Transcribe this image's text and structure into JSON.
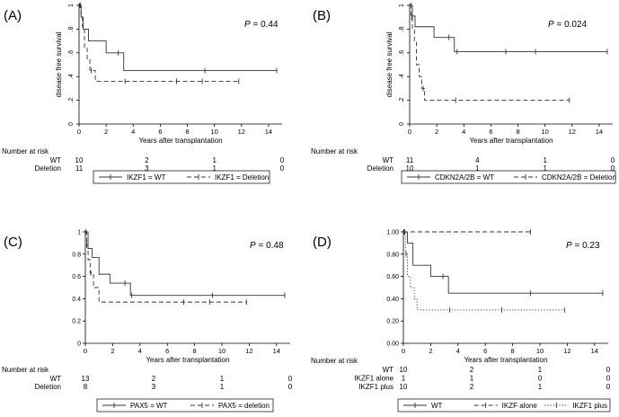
{
  "chart_data": [
    {
      "type": "line",
      "panel_label": "(A)",
      "ylabel": "disease free survival",
      "xlabel": "Years after transplantation",
      "p_value_label": "P",
      "p_value": "= 0.44",
      "xlim": [
        0,
        15
      ],
      "ylim": [
        0,
        1
      ],
      "xticks": [
        "0",
        "2",
        "4",
        "6",
        "8",
        "10",
        "12",
        "14"
      ],
      "yticks": [
        "0",
        ".2",
        ".4",
        ".6",
        ".8",
        "1"
      ],
      "series": [
        {
          "name": "IKZF1 = WT",
          "style": "solid",
          "x": [
            0,
            0.15,
            0.3,
            0.7,
            2.0,
            3.3,
            14.6
          ],
          "y": [
            1,
            0.9,
            0.8,
            0.7,
            0.6,
            0.45,
            0.45
          ],
          "censor_x": [
            0.05,
            2.9,
            9.3,
            14.6
          ]
        },
        {
          "name": "IKZF1 = Deletion",
          "style": "dashed",
          "x": [
            0,
            0.15,
            0.25,
            0.4,
            0.6,
            0.8,
            1.0,
            1.2,
            11.8
          ],
          "y": [
            1,
            0.91,
            0.82,
            0.64,
            0.55,
            0.45,
            0.45,
            0.36,
            0.36
          ],
          "censor_x": [
            0.1,
            0.9,
            3.4,
            7.2,
            9.1,
            11.8
          ]
        }
      ],
      "risk_title": "Number at risk",
      "risk_times": [
        0,
        5,
        10,
        15
      ],
      "risk_rows": [
        {
          "label": "WT",
          "values": [
            "10",
            "2",
            "1",
            "0"
          ]
        },
        {
          "label": "Deletion",
          "values": [
            "11",
            "3",
            "1",
            "0"
          ]
        }
      ]
    },
    {
      "type": "line",
      "panel_label": "(B)",
      "ylabel": "disease free survival",
      "xlabel": "Years after transplantation",
      "p_value_label": "P",
      "p_value": "= 0.024",
      "xlim": [
        0,
        15
      ],
      "ylim": [
        0,
        1
      ],
      "xticks": [
        "0",
        "2",
        "4",
        "6",
        "8",
        "10",
        "12",
        "14"
      ],
      "yticks": [
        "0",
        ".2",
        ".4",
        ".6",
        ".8",
        "1"
      ],
      "series": [
        {
          "name": "CDKN2A/2B = WT",
          "style": "solid",
          "x": [
            0,
            0.2,
            0.4,
            1.8,
            3.0,
            3.3,
            14.6
          ],
          "y": [
            1,
            0.91,
            0.82,
            0.73,
            0.73,
            0.61,
            0.61
          ],
          "censor_x": [
            0.1,
            2.9,
            3.5,
            7.1,
            9.3,
            14.6
          ]
        },
        {
          "name": "CDKN2A/2B = Deletion",
          "style": "dashed",
          "x": [
            0,
            0.1,
            0.2,
            0.35,
            0.5,
            0.7,
            0.9,
            1.1,
            11.8
          ],
          "y": [
            1,
            0.9,
            0.8,
            0.7,
            0.5,
            0.4,
            0.3,
            0.2,
            0.2
          ],
          "censor_x": [
            0.15,
            1.0,
            3.4,
            11.8
          ]
        }
      ],
      "risk_title": "Number at risk",
      "risk_times": [
        0,
        5,
        10,
        15
      ],
      "risk_rows": [
        {
          "label": "WT",
          "values": [
            "11",
            "4",
            "1",
            "0"
          ]
        },
        {
          "label": "Deletion",
          "values": [
            "10",
            "1",
            "1",
            "0"
          ]
        }
      ]
    },
    {
      "type": "line",
      "panel_label": "(C)",
      "ylabel": "",
      "xlabel": "Years after transplantation",
      "p_value_label": "P",
      "p_value": "= 0.48",
      "xlim": [
        0,
        15
      ],
      "ylim": [
        0,
        1
      ],
      "xticks": [
        "0",
        "2",
        "4",
        "6",
        "8",
        "10",
        "12",
        "14"
      ],
      "yticks": [
        "0",
        "0.2",
        "0.4",
        "0.6",
        "0.8",
        "1"
      ],
      "series": [
        {
          "name": "PAX5 = WT",
          "style": "solid",
          "x": [
            0,
            0.2,
            0.5,
            1.0,
            1.8,
            3.0,
            3.3,
            14.6
          ],
          "y": [
            1,
            0.85,
            0.77,
            0.62,
            0.54,
            0.54,
            0.43,
            0.43
          ],
          "censor_x": [
            0.05,
            2.9,
            3.4,
            9.3,
            14.6
          ]
        },
        {
          "name": "PAX5 = deletion",
          "style": "dashed",
          "x": [
            0,
            0.1,
            0.2,
            0.35,
            0.6,
            1.0,
            11.8
          ],
          "y": [
            1,
            0.88,
            0.75,
            0.63,
            0.5,
            0.37,
            0.37
          ],
          "censor_x": [
            0.1,
            0.4,
            7.2,
            9.1,
            11.8
          ]
        }
      ],
      "risk_title": "Number at risk",
      "risk_times": [
        0,
        5,
        10,
        15
      ],
      "risk_rows": [
        {
          "label": "WT",
          "values": [
            "13",
            "2",
            "1",
            "0"
          ]
        },
        {
          "label": "Deletion",
          "values": [
            "8",
            "3",
            "1",
            "0"
          ]
        }
      ]
    },
    {
      "type": "line",
      "panel_label": "(D)",
      "ylabel": "",
      "xlabel": "Years after transplantation",
      "p_value_label": "P",
      "p_value": "= 0.23",
      "xlim": [
        0,
        15
      ],
      "ylim": [
        0,
        1
      ],
      "xticks": [
        "0",
        "2",
        "4",
        "6",
        "8",
        "10",
        "12",
        "14"
      ],
      "yticks": [
        "0.00",
        "0.20",
        "0.40",
        "0.60",
        "0.80",
        "1.00"
      ],
      "series": [
        {
          "name": "WT",
          "style": "solid",
          "x": [
            0,
            0.3,
            0.7,
            2.0,
            3.3,
            14.6
          ],
          "y": [
            1,
            0.9,
            0.7,
            0.6,
            0.45,
            0.45
          ],
          "censor_x": [
            0.05,
            2.9,
            9.3,
            14.6
          ]
        },
        {
          "name": "IKZF alone",
          "style": "dashed",
          "x": [
            0,
            9.3
          ],
          "y": [
            1,
            1
          ],
          "censor_x": [
            0.1,
            9.3
          ]
        },
        {
          "name": "IKZF1 plus",
          "style": "dotted",
          "x": [
            0,
            0.15,
            0.3,
            0.5,
            0.8,
            1.0,
            11.8
          ],
          "y": [
            1,
            0.8,
            0.6,
            0.5,
            0.4,
            0.3,
            0.3
          ],
          "censor_x": [
            0.2,
            3.4,
            7.2,
            11.8
          ]
        }
      ],
      "risk_title": "Number at risk",
      "risk_times": [
        0,
        5,
        10,
        15
      ],
      "risk_rows": [
        {
          "label": "WT",
          "values": [
            "10",
            "2",
            "1",
            "0"
          ]
        },
        {
          "label": "IKZF1 alone",
          "values": [
            "1",
            "1",
            "0",
            "0"
          ]
        },
        {
          "label": "IKZF1 plus",
          "values": [
            "10",
            "2",
            "1",
            "0"
          ]
        }
      ]
    }
  ]
}
